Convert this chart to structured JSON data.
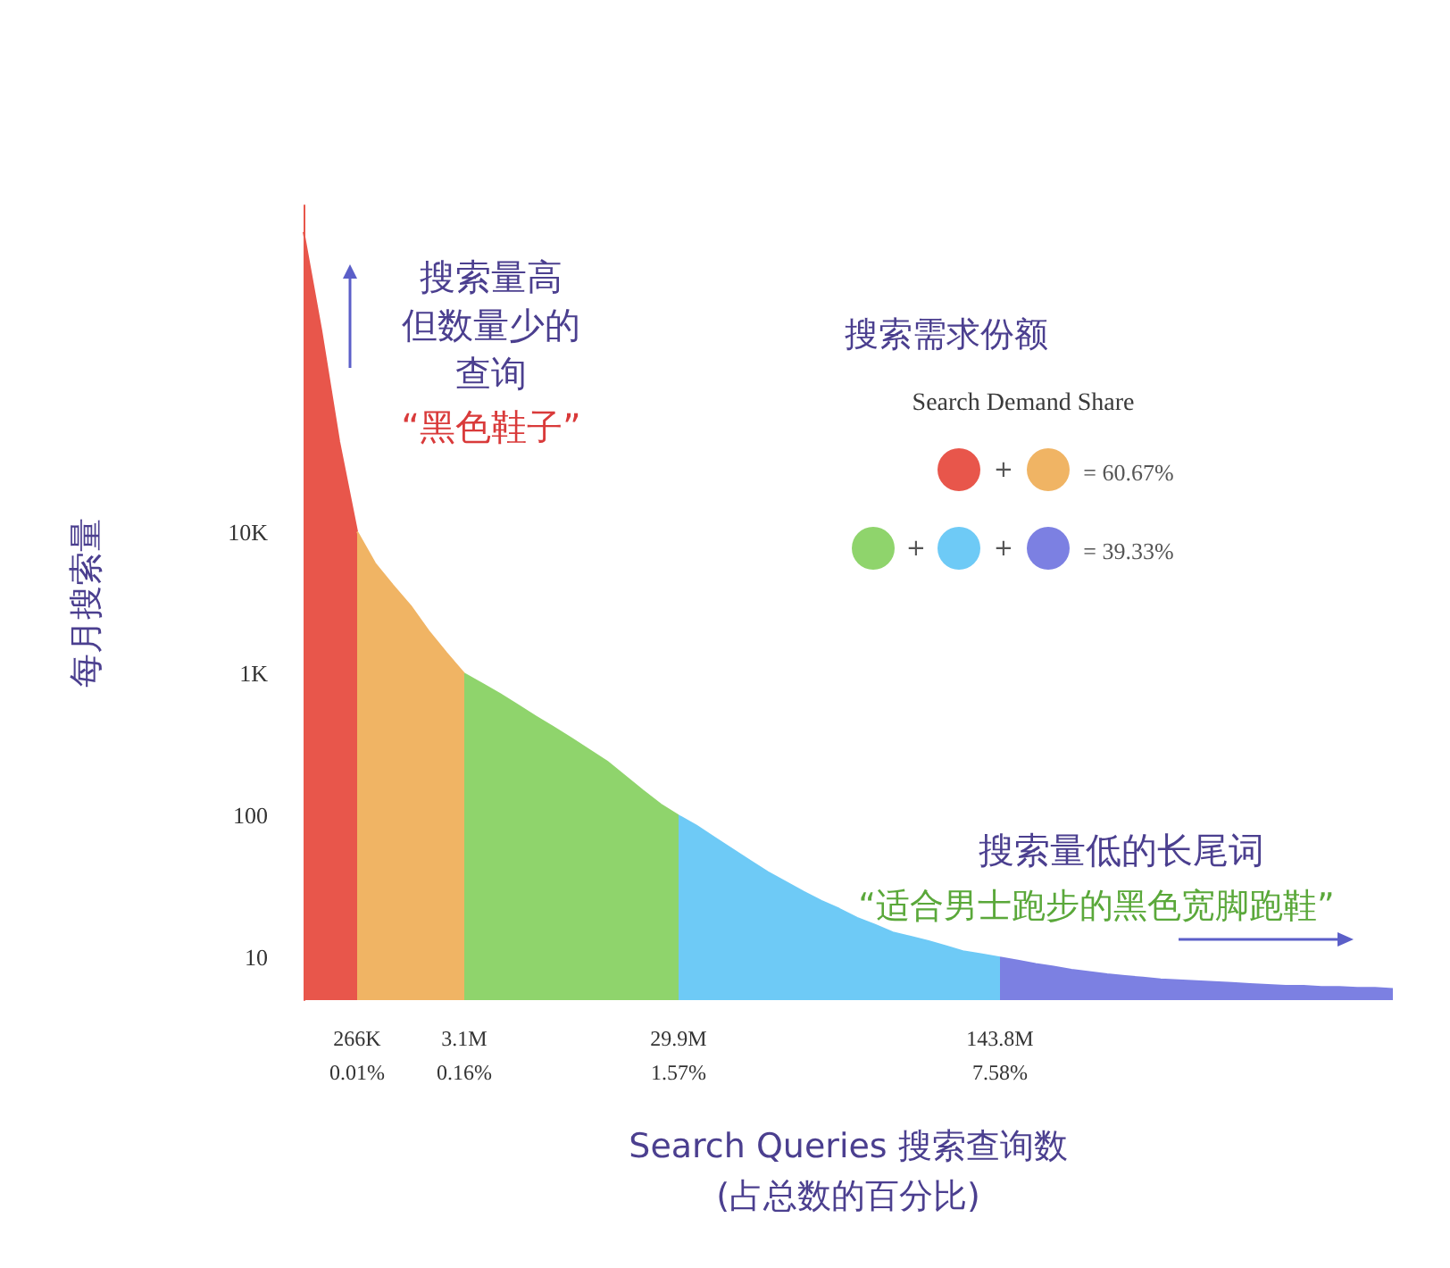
{
  "chart_data": {
    "type": "area",
    "xlabel": "Search Queries 搜索查询数\n(占总数的百分比)",
    "ylabel": "每月搜索量",
    "log": "y",
    "ylim": [
      5,
      2000000
    ],
    "yticks": [
      10,
      100,
      {
        "value": 1000,
        "label": "1K"
      },
      {
        "value": 10000,
        "label": "10K"
      }
    ],
    "categories": [
      null,
      null,
      null,
      "266K\n0.01%",
      null,
      null,
      null,
      null,
      null,
      "3.1M\n0.16%",
      null,
      null,
      null,
      null,
      null,
      null,
      null,
      null,
      null,
      null,
      null,
      "29.9M\n1.57%",
      null,
      null,
      null,
      null,
      null,
      null,
      null,
      null,
      null,
      null,
      null,
      null,
      null,
      null,
      null,
      null,
      null,
      "143.8M\n7.58%",
      null,
      null,
      null,
      null,
      null,
      null,
      null,
      null,
      null,
      null,
      null,
      null,
      null,
      null,
      null,
      null,
      null,
      null,
      null,
      null,
      null,
      null
    ],
    "series": [
      {
        "color": "#e8564b",
        "values": [
          1300000,
          260000,
          43000,
          10000,
          null,
          null,
          null,
          null,
          null,
          null,
          null,
          null,
          null,
          null,
          null,
          null,
          null,
          null,
          null,
          null,
          null,
          null,
          null,
          null,
          null,
          null,
          null,
          null,
          null,
          null,
          null,
          null,
          null,
          null,
          null,
          null,
          null,
          null,
          null,
          null,
          null,
          null,
          null,
          null,
          null,
          null,
          null,
          null,
          null,
          null,
          null,
          null,
          null,
          null,
          null,
          null,
          null,
          null,
          null,
          null,
          null,
          null
        ]
      },
      {
        "color": "#f0b464",
        "values": [
          null,
          null,
          null,
          10000,
          6000,
          4200,
          3000,
          2000,
          1400,
          1000,
          null,
          null,
          null,
          null,
          null,
          null,
          null,
          null,
          null,
          null,
          null,
          null,
          null,
          null,
          null,
          null,
          null,
          null,
          null,
          null,
          null,
          null,
          null,
          null,
          null,
          null,
          null,
          null,
          null,
          null,
          null,
          null,
          null,
          null,
          null,
          null,
          null,
          null,
          null,
          null,
          null,
          null,
          null,
          null,
          null,
          null,
          null,
          null,
          null,
          null,
          null,
          null
        ]
      },
      {
        "color": "#8fd46c",
        "values": [
          null,
          null,
          null,
          null,
          null,
          null,
          null,
          null,
          null,
          1000,
          850,
          720,
          600,
          500,
          420,
          350,
          290,
          240,
          190,
          150,
          120,
          100,
          null,
          null,
          null,
          null,
          null,
          null,
          null,
          null,
          null,
          null,
          null,
          null,
          null,
          null,
          null,
          null,
          null,
          null,
          null,
          null,
          null,
          null,
          null,
          null,
          null,
          null,
          null,
          null,
          null,
          null,
          null,
          null,
          null,
          null,
          null,
          null,
          null,
          null,
          null,
          null
        ]
      },
      {
        "color": "#6ecaf6",
        "values": [
          null,
          null,
          null,
          null,
          null,
          null,
          null,
          null,
          null,
          null,
          null,
          null,
          null,
          null,
          null,
          null,
          null,
          null,
          null,
          null,
          null,
          100,
          85,
          70,
          58,
          48,
          40,
          34,
          29,
          25,
          22,
          19,
          17,
          15,
          14,
          13,
          12,
          11,
          10.5,
          10,
          null,
          null,
          null,
          null,
          null,
          null,
          null,
          null,
          null,
          null,
          null,
          null,
          null,
          null,
          null,
          null,
          null,
          null,
          null,
          null,
          null,
          null
        ]
      },
      {
        "color": "#7c80e2",
        "values": [
          null,
          null,
          null,
          null,
          null,
          null,
          null,
          null,
          null,
          null,
          null,
          null,
          null,
          null,
          null,
          null,
          null,
          null,
          null,
          null,
          null,
          null,
          null,
          null,
          null,
          null,
          null,
          null,
          null,
          null,
          null,
          null,
          null,
          null,
          null,
          null,
          null,
          null,
          null,
          10,
          9.5,
          9,
          8.6,
          8.2,
          7.9,
          7.6,
          7.4,
          7.2,
          7,
          6.9,
          6.8,
          6.7,
          6.6,
          6.5,
          6.4,
          6.3,
          6.3,
          6.2,
          6.2,
          6.1,
          6.1,
          6
        ]
      }
    ],
    "annotations": [
      "搜索量高",
      "但数量少的",
      "查询",
      "“黑色鞋子”",
      "搜索需求份额",
      "Search Demand Share",
      "= 60.67%",
      "= 39.33%",
      "搜索量低的长尾词",
      "“适合男士跑步的黑色宽脚跑鞋”",
      "+",
      "+",
      "+"
    ]
  }
}
